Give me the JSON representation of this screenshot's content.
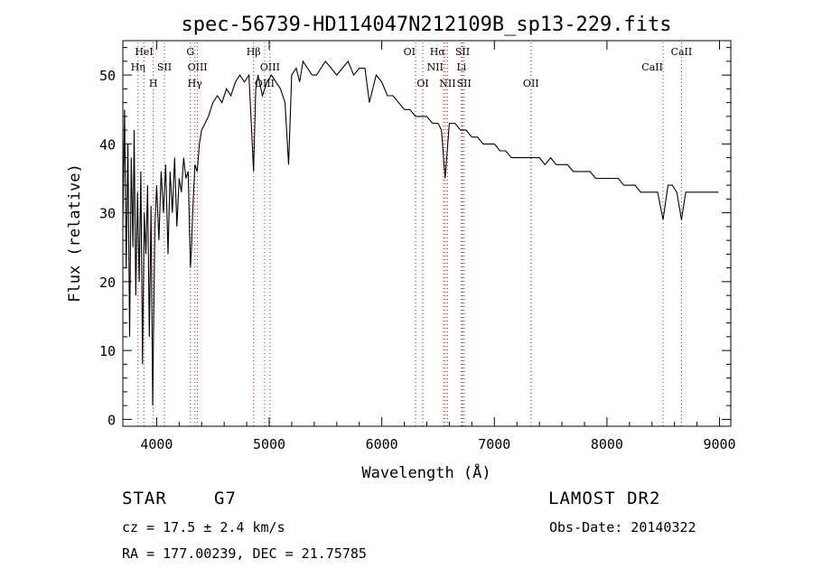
{
  "chart_data": {
    "type": "line",
    "title": "spec-56739-HD114047N212109B_sp13-229.fits",
    "xlabel": "Wavelength (Å)",
    "ylabel": "Flux (relative)",
    "xlim": [
      3700,
      9100
    ],
    "ylim": [
      -1,
      55
    ],
    "xticks": [
      4000,
      5000,
      6000,
      7000,
      8000,
      9000
    ],
    "yticks": [
      0,
      10,
      20,
      30,
      40,
      50
    ],
    "grid": false,
    "series": [
      {
        "x": [
          3700,
          3715,
          3730,
          3745,
          3760,
          3775,
          3790,
          3800,
          3815,
          3830,
          3845,
          3860,
          3875,
          3890,
          3905,
          3920,
          3935,
          3950,
          3965,
          3970,
          3985,
          4000,
          4020,
          4040,
          4060,
          4080,
          4101,
          4120,
          4140,
          4160,
          4180,
          4200,
          4220,
          4240,
          4260,
          4280,
          4300,
          4310,
          4320,
          4340,
          4360,
          4380,
          4400,
          4430,
          4460,
          4500,
          4540,
          4580,
          4620,
          4660,
          4700,
          4740,
          4780,
          4820,
          4861,
          4880,
          4900,
          4940,
          4980,
          5020,
          5060,
          5100,
          5140,
          5172,
          5200,
          5240,
          5270,
          5300,
          5340,
          5380,
          5420,
          5460,
          5500,
          5550,
          5600,
          5650,
          5700,
          5750,
          5800,
          5850,
          5890,
          5950,
          6000,
          6050,
          6100,
          6150,
          6200,
          6250,
          6300,
          6350,
          6400,
          6450,
          6500,
          6530,
          6563,
          6600,
          6650,
          6700,
          6750,
          6800,
          6850,
          6900,
          6950,
          7000,
          7050,
          7100,
          7150,
          7200,
          7250,
          7300,
          7350,
          7400,
          7450,
          7500,
          7550,
          7600,
          7650,
          7700,
          7750,
          7800,
          7850,
          7900,
          7950,
          8000,
          8050,
          8100,
          8150,
          8200,
          8250,
          8300,
          8350,
          8400,
          8450,
          8498,
          8542,
          8580,
          8620,
          8662,
          8700,
          8750,
          8800,
          8850,
          8900,
          8950,
          8990
        ],
        "y": [
          28,
          45,
          22,
          40,
          12,
          38,
          25,
          42,
          18,
          33,
          20,
          36,
          8,
          30,
          24,
          34,
          12,
          31,
          2,
          10,
          28,
          34,
          26,
          36,
          30,
          37,
          24,
          36,
          30,
          38,
          28,
          35,
          33,
          38,
          35,
          36,
          22,
          25,
          30,
          37,
          36,
          40,
          42,
          43,
          44,
          46,
          47,
          46,
          48,
          47,
          49,
          50,
          49,
          50,
          36,
          48,
          50,
          47,
          49,
          50,
          49,
          48,
          46,
          37,
          50,
          51,
          49,
          52,
          51,
          50,
          50,
          51,
          52,
          51,
          50,
          51,
          52,
          50,
          51,
          51,
          46,
          50,
          49,
          47,
          47,
          46,
          45,
          45,
          44,
          44,
          44,
          43,
          43,
          42,
          35,
          43,
          43,
          42,
          42,
          41,
          41,
          40,
          40,
          40,
          39,
          39,
          38,
          38,
          38,
          38,
          38,
          38,
          37,
          38,
          37,
          37,
          37,
          36,
          36,
          36,
          36,
          35,
          35,
          35,
          35,
          35,
          34,
          34,
          34,
          33,
          33,
          33,
          33,
          29,
          34,
          34,
          33,
          29,
          33,
          33,
          33,
          33,
          33,
          33,
          33
        ]
      }
    ],
    "lines": [
      {
        "x": 3835,
        "labels": [
          "Hη"
        ]
      },
      {
        "x": 3889,
        "labels": [
          "HeI"
        ]
      },
      {
        "x": 3970,
        "labels": [
          "H"
        ]
      },
      {
        "x": 4069,
        "labels": [
          "SII"
        ]
      },
      {
        "x": 4300,
        "labels": [
          "G"
        ]
      },
      {
        "x": 4340,
        "labels": [
          "Hγ"
        ]
      },
      {
        "x": 4363,
        "labels": [
          "OIII"
        ]
      },
      {
        "x": 4861,
        "labels": [
          "Hβ"
        ]
      },
      {
        "x": 4959,
        "labels": [
          "OIII"
        ]
      },
      {
        "x": 5007,
        "labels": [
          "OIII"
        ]
      },
      {
        "x": 6300,
        "labels": [
          "OI"
        ]
      },
      {
        "x": 6364,
        "labels": [
          "OI"
        ]
      },
      {
        "x": 6548,
        "labels": [
          "NII"
        ]
      },
      {
        "x": 6563,
        "labels": [
          "Hα"
        ]
      },
      {
        "x": 6584,
        "labels": [
          "NII"
        ]
      },
      {
        "x": 6708,
        "labels": [
          "Li"
        ]
      },
      {
        "x": 6717,
        "labels": [
          "SII"
        ]
      },
      {
        "x": 6731,
        "labels": [
          "SII"
        ]
      },
      {
        "x": 7325,
        "labels": [
          "OII"
        ]
      },
      {
        "x": 8498,
        "labels": [
          "CaII"
        ]
      },
      {
        "x": 8662,
        "labels": [
          "CaII"
        ]
      }
    ]
  },
  "info": {
    "object_type": "STAR",
    "subclass": "G7",
    "survey": "LAMOST DR2",
    "redshift": "cz = 17.5 ± 2.4 km/s",
    "obs_date": "Obs-Date: 20140322",
    "coords": "RA = 177.00239, DEC =  21.75785"
  }
}
